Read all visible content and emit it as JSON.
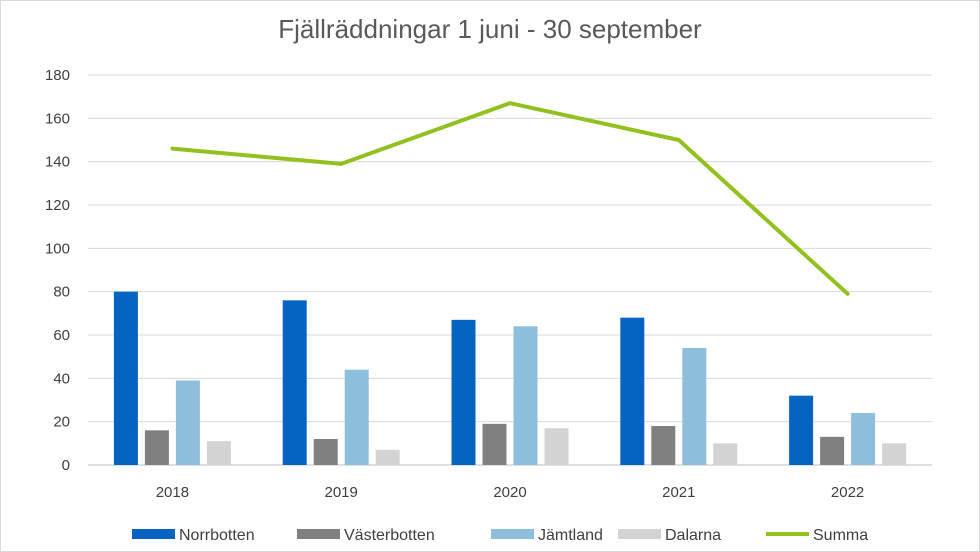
{
  "chart_data": {
    "type": "bar",
    "title": "Fjällräddningar 1 juni - 30 september",
    "categories": [
      "2018",
      "2019",
      "2020",
      "2021",
      "2022"
    ],
    "ylim": [
      0,
      180
    ],
    "yticks": [
      0,
      20,
      40,
      60,
      80,
      100,
      120,
      140,
      160,
      180
    ],
    "grid": true,
    "legend_position": "bottom",
    "series": [
      {
        "name": "Norrbotten",
        "kind": "bar",
        "color": "#0563c1",
        "values": [
          80,
          76,
          67,
          68,
          32
        ]
      },
      {
        "name": "Västerbotten",
        "kind": "bar",
        "color": "#808080",
        "values": [
          16,
          12,
          19,
          18,
          13
        ]
      },
      {
        "name": "Jämtland",
        "kind": "bar",
        "color": "#8dbfdd",
        "values": [
          39,
          44,
          64,
          54,
          24
        ]
      },
      {
        "name": "Dalarna",
        "kind": "bar",
        "color": "#d3d3d3",
        "values": [
          11,
          7,
          17,
          10,
          10
        ]
      },
      {
        "name": "Summa",
        "kind": "line",
        "color": "#92c01f",
        "values": [
          146,
          139,
          167,
          150,
          79
        ]
      }
    ]
  }
}
